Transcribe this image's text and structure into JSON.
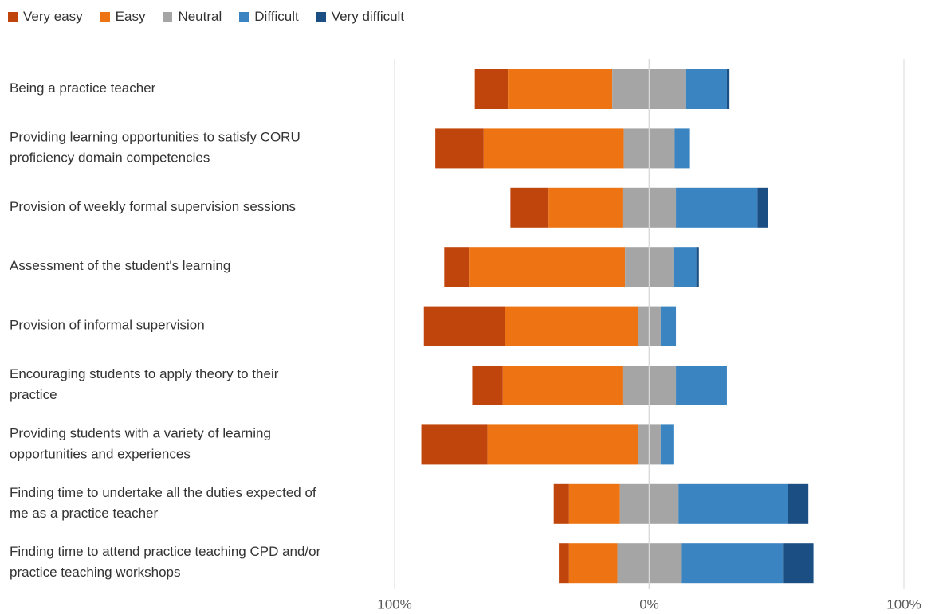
{
  "chart_data": {
    "type": "bar",
    "orientation": "horizontal",
    "stacked": "diverging",
    "title": "",
    "xlabel": "",
    "ylabel": "",
    "xlim": [
      -100,
      100
    ],
    "x_ticks": [
      {
        "value": -100,
        "label": "100%"
      },
      {
        "value": 0,
        "label": "0%"
      },
      {
        "value": 100,
        "label": "100%"
      }
    ],
    "grid": true,
    "legend_position": "top-left",
    "categories": [
      [
        "Being a practice teacher"
      ],
      [
        "Providing learning opportunities to satisfy CORU",
        "proficiency domain competencies"
      ],
      [
        "Provision of weekly formal supervision sessions"
      ],
      [
        "Assessment of the student's learning"
      ],
      [
        "Provision of informal supervision"
      ],
      [
        "Encouraging students to apply theory to their",
        "practice"
      ],
      [
        "Providing students with a variety of learning",
        "opportunities and experiences"
      ],
      [
        "Finding time to undertake all the duties expected of",
        "me as a practice teacher"
      ],
      [
        "Finding time to attend practice teaching CPD and/or",
        "practice teaching workshops"
      ]
    ],
    "series": [
      {
        "name": "Very easy",
        "color": "#C0450C",
        "side": "negative",
        "values": [
          13,
          19,
          15,
          10,
          32,
          12,
          26,
          6,
          4
        ]
      },
      {
        "name": "Easy",
        "color": "#EE7413",
        "side": "negative",
        "values": [
          41,
          55,
          29,
          61,
          52,
          47,
          59,
          20,
          19
        ]
      },
      {
        "name": "Neutral",
        "color": "#A5A5A5",
        "side": "split",
        "values": [
          29,
          20,
          21,
          19,
          9,
          21,
          9,
          23,
          25
        ]
      },
      {
        "name": "Difficult",
        "color": "#3A84C1",
        "side": "positive",
        "values": [
          16,
          6,
          32,
          9,
          6,
          20,
          5,
          43,
          40
        ]
      },
      {
        "name": "Very difficult",
        "color": "#1B4F84",
        "side": "positive",
        "values": [
          1,
          0,
          4,
          1,
          0,
          0,
          0,
          8,
          12
        ]
      }
    ]
  }
}
